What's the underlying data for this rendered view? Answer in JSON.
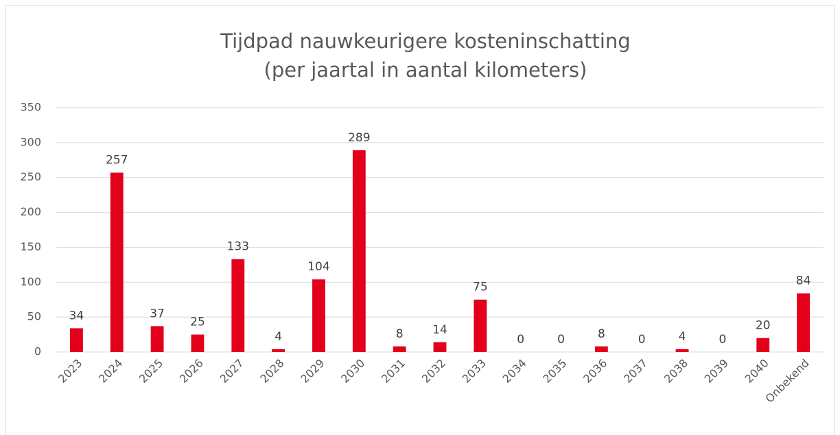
{
  "chart_data": {
    "type": "bar",
    "title": "Tijdpad nauwkeurigere kosteninschatting",
    "subtitle": "(per jaartal in aantal kilometers)",
    "categories": [
      "2023",
      "2024",
      "2025",
      "2026",
      "2027",
      "2028",
      "2029",
      "2030",
      "2031",
      "2032",
      "2033",
      "2034",
      "2035",
      "2036",
      "2037",
      "2038",
      "2039",
      "2040",
      "Onbekend"
    ],
    "values": [
      34,
      257,
      37,
      25,
      133,
      4,
      104,
      289,
      8,
      14,
      75,
      0,
      0,
      8,
      0,
      4,
      0,
      20,
      84
    ],
    "color": "#e2001a",
    "ylim": [
      0,
      350
    ],
    "yticks": [
      0,
      50,
      100,
      150,
      200,
      250,
      300,
      350
    ],
    "grid": true
  }
}
